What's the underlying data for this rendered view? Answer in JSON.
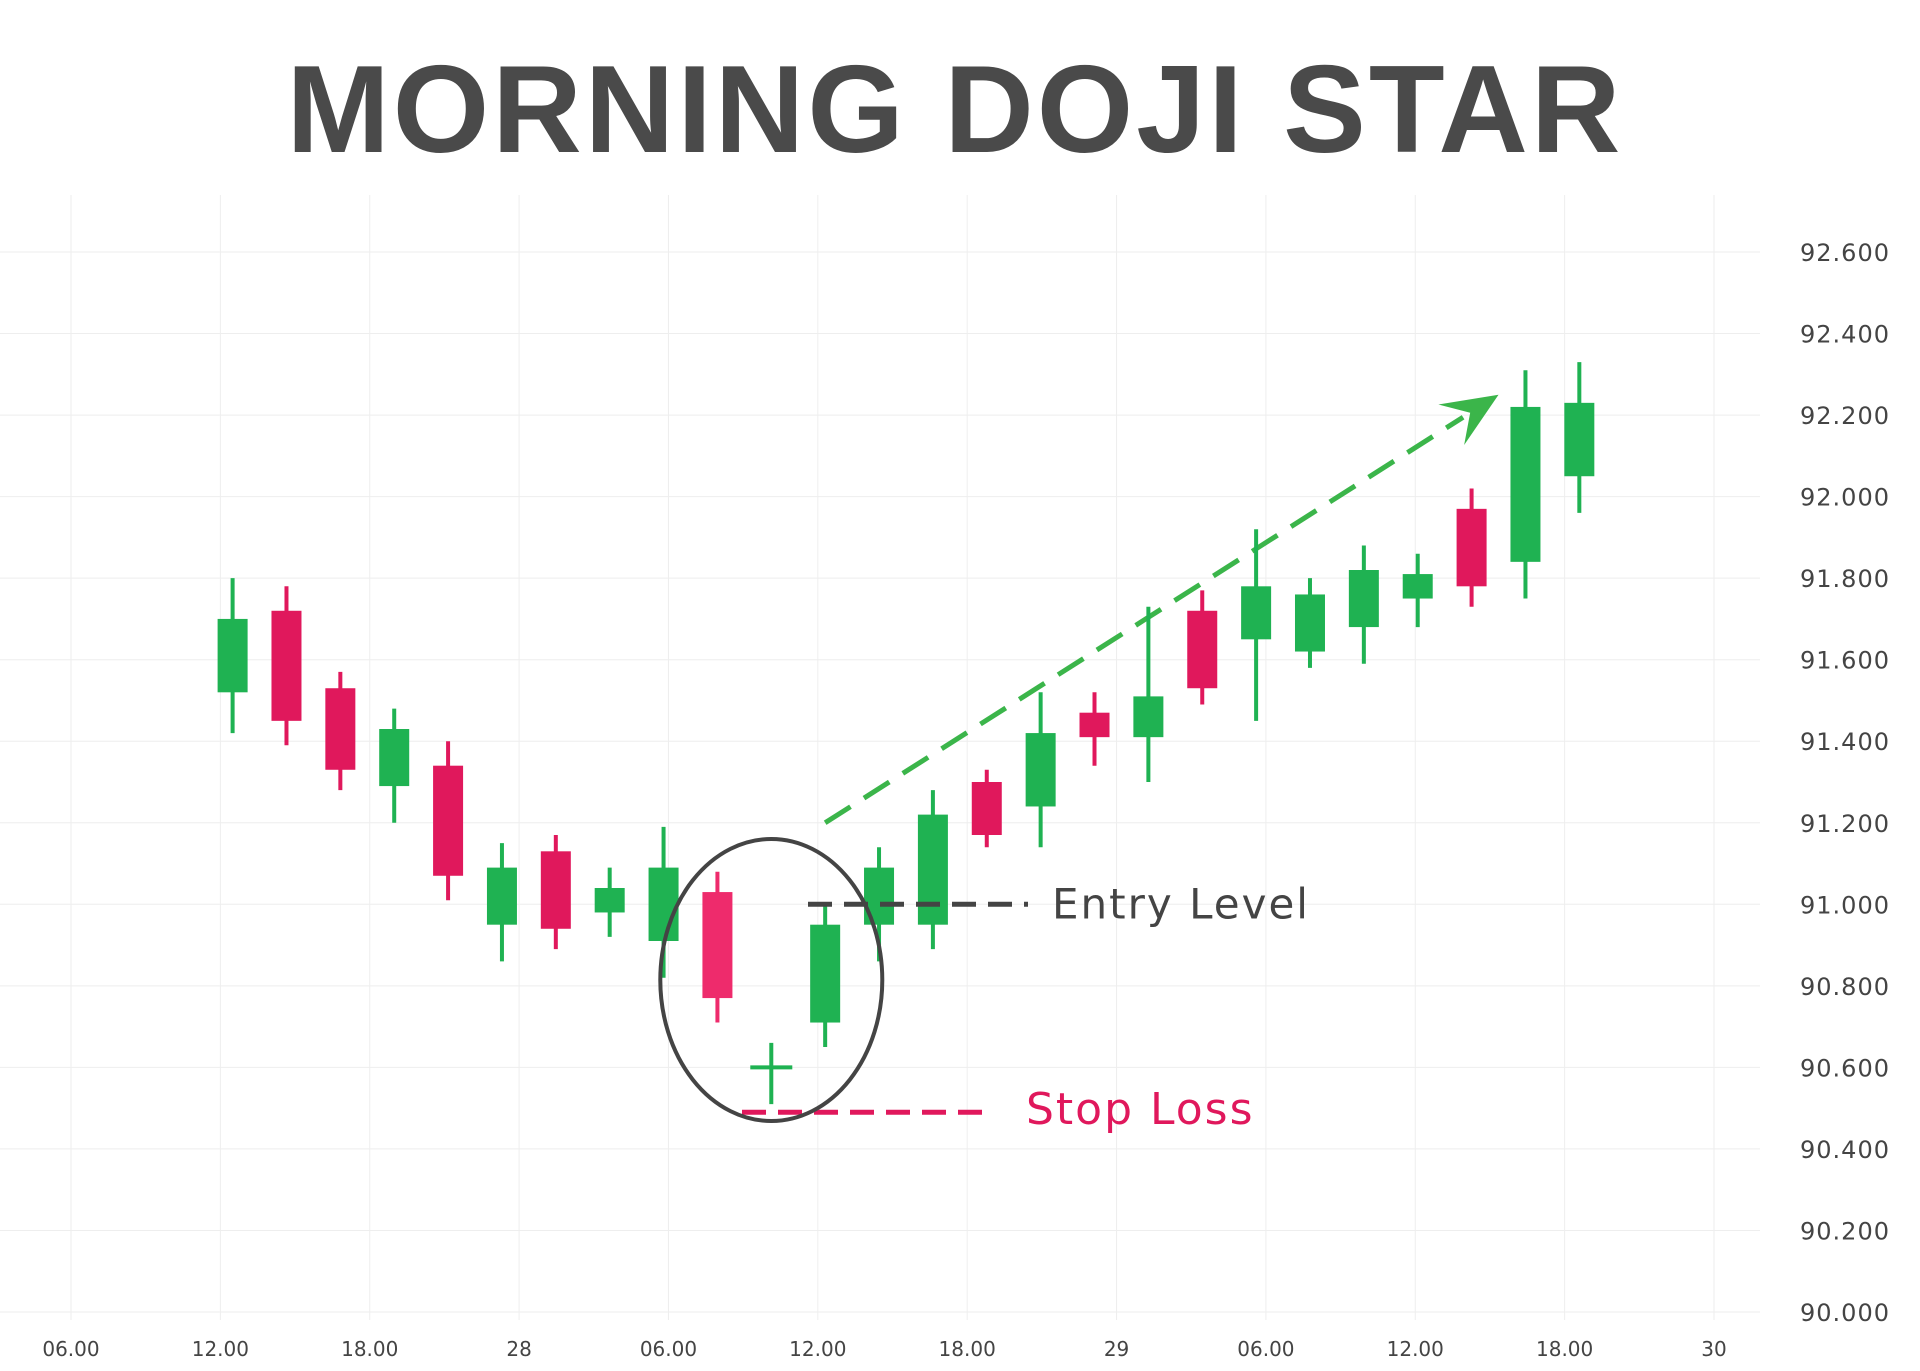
{
  "title": "MORNING DOJI STAR",
  "colors": {
    "background": "#ffffff",
    "title": "#4a4a4a",
    "grid": "#eeeeee",
    "axis_text": "#444444",
    "bullish": "#1fb252",
    "bearish": "#e0185c",
    "bearish_highlight": "#ee2b6c",
    "entry_line": "#444444",
    "stop_line": "#e0185c",
    "trend_arrow": "#3bb54a",
    "circle": "#444444"
  },
  "annotations": {
    "entry_label": "Entry Level",
    "stop_label": "Stop Loss"
  },
  "chart_data": {
    "type": "candlestick",
    "title": "MORNING DOJI STAR",
    "x_ticks": [
      "06.00",
      "12.00",
      "18.00",
      "28",
      "06.00",
      "12.00",
      "18.00",
      "29",
      "06.00",
      "12.00",
      "18.00",
      "30"
    ],
    "y_ticks": [
      "92.600",
      "92.400",
      "92.200",
      "92.000",
      "91.800",
      "91.600",
      "91.400",
      "91.200",
      "91.000",
      "90.800",
      "90.600",
      "90.400",
      "90.200",
      "90.000"
    ],
    "ylim": [
      90.0,
      92.6
    ],
    "x_index_range": [
      -3,
      27.5
    ],
    "grid": true,
    "candles": [
      {
        "x": 0,
        "open": 91.52,
        "close": 91.7,
        "high": 91.8,
        "low": 91.42
      },
      {
        "x": 1,
        "open": 91.72,
        "close": 91.45,
        "high": 91.78,
        "low": 91.39
      },
      {
        "x": 2,
        "open": 91.53,
        "close": 91.33,
        "high": 91.57,
        "low": 91.28
      },
      {
        "x": 3,
        "open": 91.29,
        "close": 91.43,
        "high": 91.48,
        "low": 91.2
      },
      {
        "x": 4,
        "open": 91.34,
        "close": 91.07,
        "high": 91.4,
        "low": 91.01
      },
      {
        "x": 5,
        "open": 90.95,
        "close": 91.09,
        "high": 91.15,
        "low": 90.86
      },
      {
        "x": 6,
        "open": 91.13,
        "close": 90.94,
        "high": 91.17,
        "low": 90.89
      },
      {
        "x": 7,
        "open": 90.98,
        "close": 91.04,
        "high": 91.09,
        "low": 90.92
      },
      {
        "x": 8,
        "open": 90.91,
        "close": 91.09,
        "high": 91.19,
        "low": 90.82
      },
      {
        "x": 9,
        "open": 91.03,
        "close": 90.77,
        "high": 91.08,
        "low": 90.71
      },
      {
        "x": 10,
        "open": 90.6,
        "close": 90.6,
        "high": 90.66,
        "low": 90.51
      },
      {
        "x": 11,
        "open": 90.71,
        "close": 90.95,
        "high": 91.0,
        "low": 90.65
      },
      {
        "x": 12,
        "open": 90.95,
        "close": 91.09,
        "high": 91.14,
        "low": 90.86
      },
      {
        "x": 13,
        "open": 90.95,
        "close": 91.22,
        "high": 91.28,
        "low": 90.89
      },
      {
        "x": 14,
        "open": 91.3,
        "close": 91.17,
        "high": 91.33,
        "low": 91.14
      },
      {
        "x": 15,
        "open": 91.24,
        "close": 91.42,
        "high": 91.52,
        "low": 91.14
      },
      {
        "x": 16,
        "open": 91.47,
        "close": 91.41,
        "high": 91.52,
        "low": 91.34
      },
      {
        "x": 17,
        "open": 91.41,
        "close": 91.51,
        "high": 91.73,
        "low": 91.3
      },
      {
        "x": 18,
        "open": 91.72,
        "close": 91.53,
        "high": 91.77,
        "low": 91.49
      },
      {
        "x": 19,
        "open": 91.65,
        "close": 91.78,
        "high": 91.92,
        "low": 91.45
      },
      {
        "x": 20,
        "open": 91.62,
        "close": 91.76,
        "high": 91.8,
        "low": 91.58
      },
      {
        "x": 21,
        "open": 91.68,
        "close": 91.82,
        "high": 91.88,
        "low": 91.59
      },
      {
        "x": 22,
        "open": 91.75,
        "close": 91.81,
        "high": 91.86,
        "low": 91.68
      },
      {
        "x": 23,
        "open": 91.97,
        "close": 91.78,
        "high": 92.02,
        "low": 91.73
      },
      {
        "x": 24,
        "open": 91.84,
        "close": 92.22,
        "high": 92.31,
        "low": 91.75
      },
      {
        "x": 25,
        "open": 92.05,
        "close": 92.23,
        "high": 92.33,
        "low": 91.96
      }
    ],
    "doji_index": 10,
    "highlight_index": 9,
    "entry_level": 91.0,
    "stop_loss": 90.49,
    "pattern_candles": [
      9,
      10,
      11
    ],
    "trend_arrow": {
      "from": [
        11,
        91.2
      ],
      "to": [
        23.5,
        92.25
      ]
    }
  }
}
